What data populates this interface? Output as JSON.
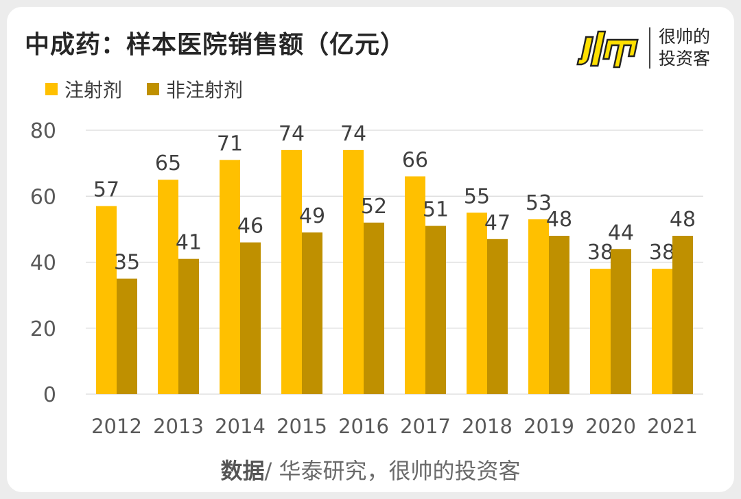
{
  "title": "中成药：样本医院销售额（亿元）",
  "logo": {
    "line1": "很帅的",
    "line2": "投资客"
  },
  "source": {
    "label": "数据",
    "text": "/ 华泰研究，很帅的投资客"
  },
  "colors": {
    "series0": "#FFC000",
    "series1": "#BF9000",
    "grid": "#d9d9d9",
    "axis": "#595959"
  },
  "chart_data": {
    "type": "bar",
    "title": "中成药：样本医院销售额（亿元）",
    "categories": [
      "2012",
      "2013",
      "2014",
      "2015",
      "2016",
      "2017",
      "2018",
      "2019",
      "2020",
      "2021"
    ],
    "series": [
      {
        "name": "注射剂",
        "values": [
          57,
          65,
          71,
          74,
          74,
          66,
          55,
          53,
          38,
          38
        ]
      },
      {
        "name": "非注射剂",
        "values": [
          35,
          41,
          46,
          49,
          52,
          51,
          47,
          48,
          44,
          48
        ]
      }
    ],
    "yticks": [
      0,
      20,
      40,
      60,
      80
    ],
    "ylim": [
      0,
      80
    ],
    "legend_position": "top-left",
    "grid": true,
    "xlabel": "",
    "ylabel": ""
  }
}
